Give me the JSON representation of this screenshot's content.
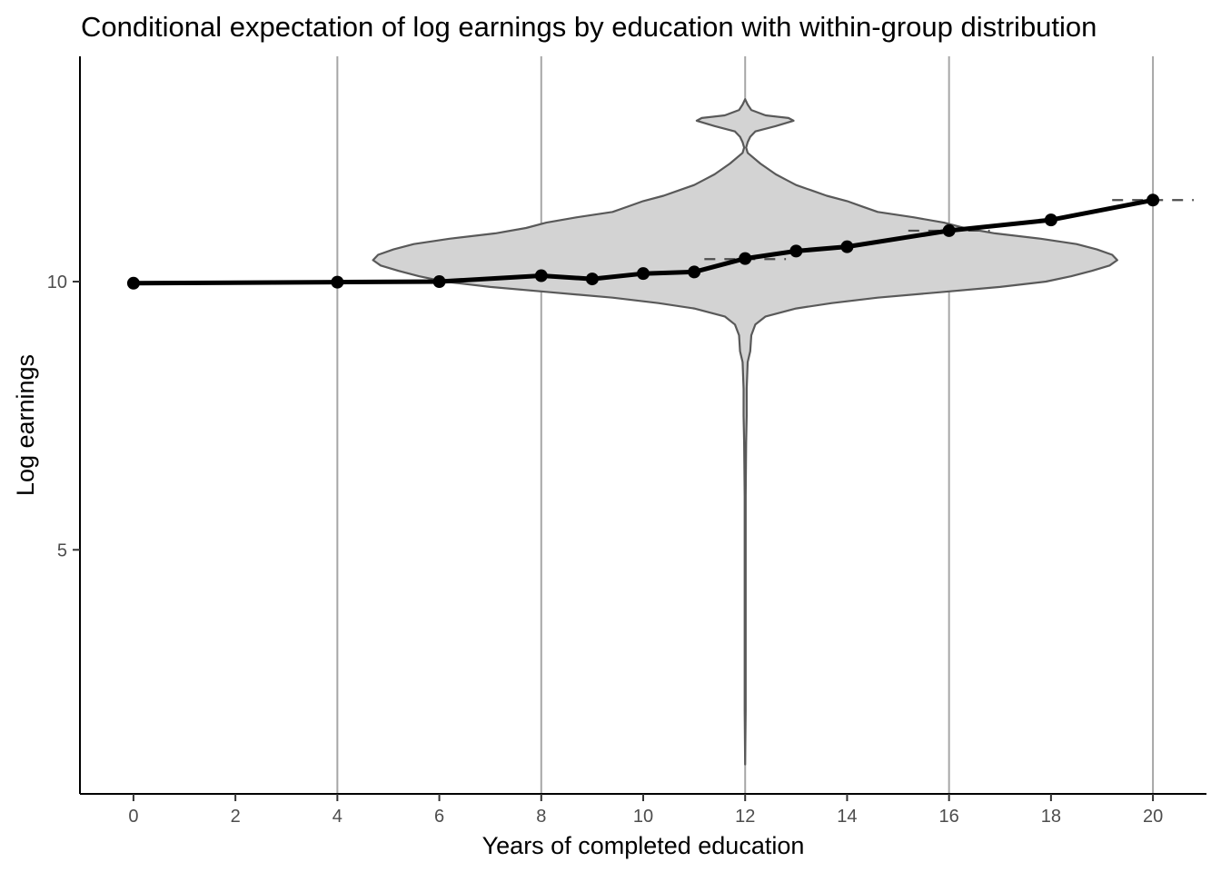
{
  "chart_data": {
    "type": "line",
    "title": "Conditional expectation of log earnings by education with within-group distribution",
    "xlabel": "Years of completed education",
    "ylabel": "Log earnings",
    "xlim": [
      -1.05,
      21.05
    ],
    "ylim": [
      0.45,
      14.2
    ],
    "x_ticks": [
      0,
      2,
      4,
      6,
      8,
      10,
      12,
      14,
      16,
      18,
      20
    ],
    "y_ticks": [
      5,
      10
    ],
    "grid": false,
    "legend": "none",
    "reference_lines_x": [
      4,
      8,
      12,
      16,
      20
    ],
    "series": [
      {
        "type": "line",
        "x": [
          0,
          4,
          6,
          8,
          9,
          10,
          11,
          12,
          13,
          14,
          16,
          18,
          20
        ],
        "y": [
          9.97,
          9.99,
          10.0,
          10.11,
          10.05,
          10.15,
          10.18,
          10.43,
          10.57,
          10.65,
          10.95,
          11.15,
          11.52
        ]
      }
    ],
    "dashed_segments": [
      {
        "x_start": 11.2,
        "x_end": 12.8,
        "y": 10.42
      },
      {
        "x_start": 15.2,
        "x_end": 16.8,
        "y": 10.95
      },
      {
        "x_start": 19.2,
        "x_end": 20.8,
        "y": 11.52
      }
    ],
    "violin": {
      "x_center": 12,
      "profile": [
        [
          1.0,
          0.0
        ],
        [
          2.0,
          0.01
        ],
        [
          4.0,
          0.01
        ],
        [
          5.0,
          0.01
        ],
        [
          6.0,
          0.01
        ],
        [
          7.0,
          0.02
        ],
        [
          7.5,
          0.03
        ],
        [
          8.0,
          0.03
        ],
        [
          8.5,
          0.05
        ],
        [
          8.7,
          0.1
        ],
        [
          9.0,
          0.12
        ],
        [
          9.2,
          0.2
        ],
        [
          9.35,
          0.4
        ],
        [
          9.5,
          1.0
        ],
        [
          9.6,
          1.7
        ],
        [
          9.7,
          2.6
        ],
        [
          9.8,
          3.8
        ],
        [
          9.9,
          5.0
        ],
        [
          10.0,
          5.9
        ],
        [
          10.1,
          6.4
        ],
        [
          10.2,
          6.8
        ],
        [
          10.3,
          7.15
        ],
        [
          10.4,
          7.3
        ],
        [
          10.5,
          7.2
        ],
        [
          10.6,
          6.9
        ],
        [
          10.7,
          6.5
        ],
        [
          10.8,
          5.8
        ],
        [
          10.9,
          4.9
        ],
        [
          11.0,
          4.3
        ],
        [
          11.1,
          3.9
        ],
        [
          11.2,
          3.3
        ],
        [
          11.3,
          2.6
        ],
        [
          11.4,
          2.3
        ],
        [
          11.5,
          2.0
        ],
        [
          11.6,
          1.6
        ],
        [
          11.7,
          1.3
        ],
        [
          11.8,
          1.0
        ],
        [
          11.9,
          0.8
        ],
        [
          12.0,
          0.6
        ],
        [
          12.2,
          0.3
        ],
        [
          12.4,
          0.05
        ],
        [
          12.5,
          0.02
        ],
        [
          12.6,
          0.05
        ],
        [
          12.7,
          0.1
        ],
        [
          12.8,
          0.2
        ],
        [
          12.9,
          0.6
        ],
        [
          13.0,
          0.95
        ],
        [
          13.05,
          0.85
        ],
        [
          13.1,
          0.4
        ],
        [
          13.2,
          0.12
        ],
        [
          13.3,
          0.05
        ],
        [
          13.4,
          0.0
        ]
      ]
    }
  }
}
